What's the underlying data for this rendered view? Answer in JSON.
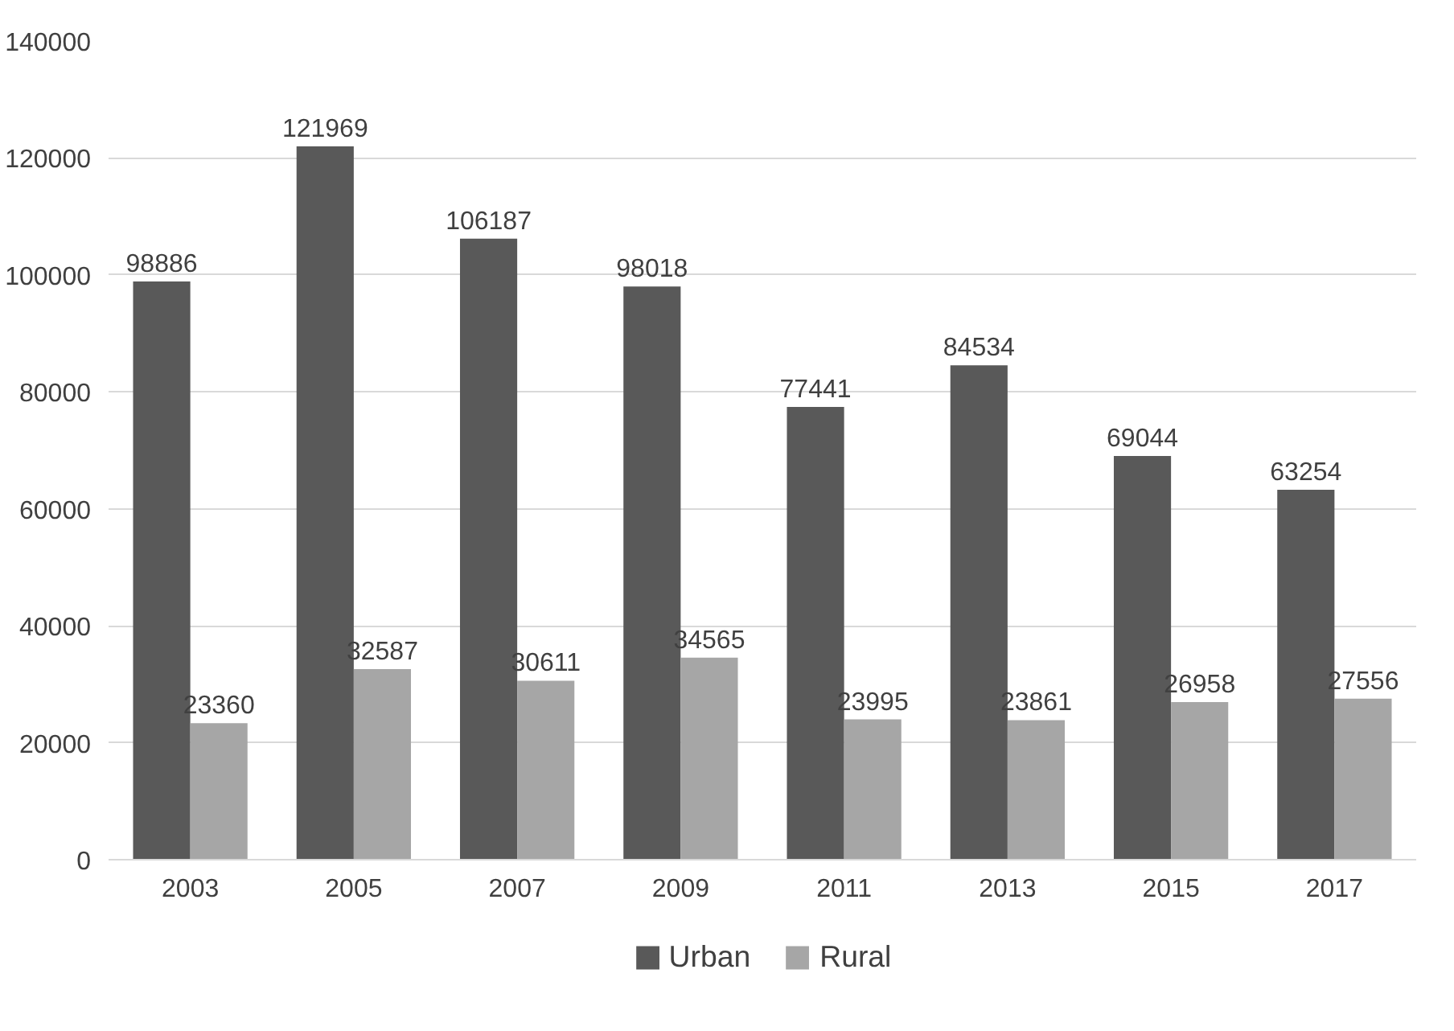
{
  "chart_data": {
    "type": "bar",
    "categories": [
      "2003",
      "2005",
      "2007",
      "2009",
      "2011",
      "2013",
      "2015",
      "2017"
    ],
    "series": [
      {
        "name": "Urban",
        "color": "#595959",
        "values": [
          98886,
          121969,
          106187,
          98018,
          77441,
          84534,
          69044,
          63254
        ]
      },
      {
        "name": "Rural",
        "color": "#a6a6a6",
        "values": [
          23360,
          32587,
          30611,
          34565,
          23995,
          23861,
          26958,
          27556
        ]
      }
    ],
    "ylim": [
      0,
      140000
    ],
    "yticks": [
      0,
      20000,
      40000,
      60000,
      80000,
      100000,
      120000,
      140000
    ],
    "grid": "y",
    "legend": "bottom",
    "data_labels": true
  }
}
